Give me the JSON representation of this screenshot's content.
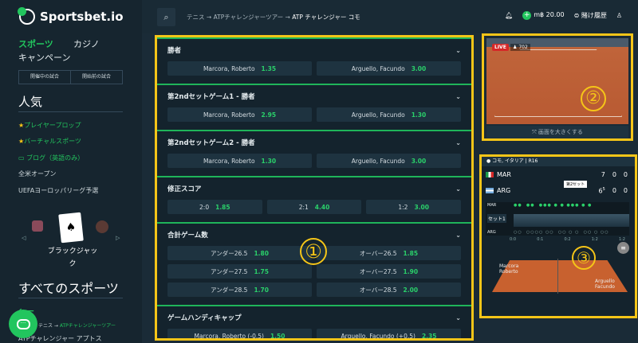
{
  "brand": {
    "name": "Sportsbet.io"
  },
  "nav": {
    "sports": "スポーツ",
    "casino": "カジノ",
    "campaign": "キャンペーン"
  },
  "live_tabs": [
    "開催中の試合",
    "開始前の試合"
  ],
  "sidebar": {
    "popular_heading": "人気",
    "links": [
      {
        "label": "プレイヤープロップ",
        "icon": "star-icon"
      },
      {
        "label": "バーチャルスポーツ",
        "icon": "star-icon"
      },
      {
        "label": "ブログ（英語のみ）",
        "icon": "chat-icon"
      },
      {
        "label": "全米オープン"
      },
      {
        "label": "UEFAヨーロッパリーグ予選"
      }
    ],
    "casino_label": "ブラックジャック",
    "all_sports_heading": "すべてのスポーツ",
    "breadcrumb": [
      "テニス",
      "ATPチャレンジャーツアー"
    ],
    "current": "ATPチャレンジャー アプトス"
  },
  "header": {
    "breadcrumb": [
      "テニス",
      "ATPチャレンジャーツアー",
      "ATP チャレンジャー コモ"
    ],
    "balance": "m฿ 20.00",
    "bet_history": "賭け履歴"
  },
  "markets": [
    {
      "title": "勝者",
      "rows": [
        [
          {
            "label": "Marcora, Roberto",
            "odds": "1.35"
          },
          {
            "label": "Arguello, Facundo",
            "odds": "3.00"
          }
        ]
      ]
    },
    {
      "title": "第2ndセットゲーム1 - 勝者",
      "rows": [
        [
          {
            "label": "Marcora, Roberto",
            "odds": "2.95"
          },
          {
            "label": "Arguello, Facundo",
            "odds": "1.30"
          }
        ]
      ]
    },
    {
      "title": "第2ndセットゲーム2 - 勝者",
      "rows": [
        [
          {
            "label": "Marcora, Roberto",
            "odds": "1.30"
          },
          {
            "label": "Arguello, Facundo",
            "odds": "3.00"
          }
        ]
      ]
    },
    {
      "title": "修正スコア",
      "rows": [
        [
          {
            "label": "2:0",
            "odds": "1.85"
          },
          {
            "label": "2:1",
            "odds": "4.40"
          },
          {
            "label": "1:2",
            "odds": "3.00"
          }
        ]
      ]
    },
    {
      "title": "合計ゲーム数",
      "rows": [
        [
          {
            "label": "アンダー26.5",
            "odds": "1.80"
          },
          {
            "label": "オーバー26.5",
            "odds": "1.85"
          }
        ],
        [
          {
            "label": "アンダー27.5",
            "odds": "1.75"
          },
          {
            "label": "オーバー27.5",
            "odds": "1.90"
          }
        ],
        [
          {
            "label": "アンダー28.5",
            "odds": "1.70"
          },
          {
            "label": "オーバー28.5",
            "odds": "2.00"
          }
        ]
      ]
    },
    {
      "title": "ゲームハンディキャップ",
      "rows": [
        [
          {
            "label": "Marcora, Roberto (-0.5)",
            "odds": "1.50"
          },
          {
            "label": "Arguello, Facundo (+0.5)",
            "odds": "2.35"
          }
        ]
      ]
    }
  ],
  "annotations": [
    "①",
    "②",
    "③"
  ],
  "video": {
    "live": "LIVE",
    "viewers": "702",
    "expand": "画面を大きくする"
  },
  "scoreboard": {
    "venue": "コモ, イタリア | R16",
    "tooltip": "第2セット",
    "set_select": "セット1",
    "players": [
      {
        "code": "MAR",
        "set1": "7",
        "set2": "0",
        "game": "0"
      },
      {
        "code": "ARG",
        "set1": "6",
        "tb": "5",
        "set2": "0",
        "game": "0"
      }
    ],
    "ticks": [
      "0:0",
      "0:1",
      "0:2",
      "1:2",
      "1:2"
    ],
    "court_names": [
      "Marcora Roberto",
      "Arguello Facundo"
    ]
  },
  "colors": {
    "accent": "#22c55e",
    "highlight": "#f5c518",
    "bg": "#1a2b37"
  }
}
